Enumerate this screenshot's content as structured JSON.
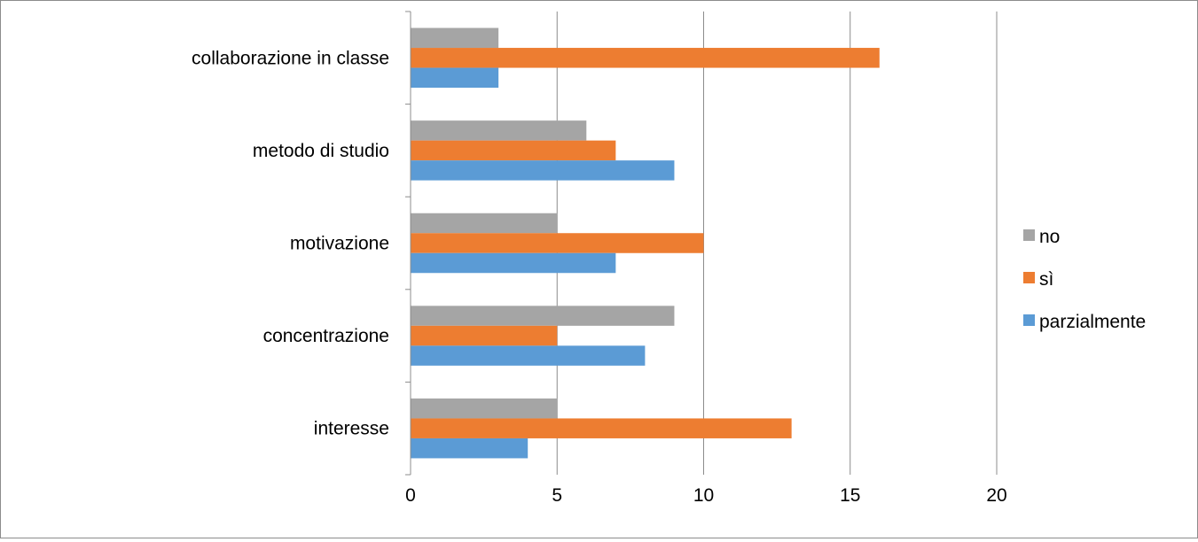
{
  "chart_data": {
    "type": "bar",
    "orientation": "horizontal",
    "categories": [
      "interesse",
      "concentrazione",
      "motivazione",
      "metodo di studio",
      "collaborazione in classe"
    ],
    "series": [
      {
        "name": "parzialmente",
        "color": "#5b9bd5",
        "values": [
          4,
          8,
          7,
          9,
          3
        ]
      },
      {
        "name": "sì",
        "color": "#ed7d31",
        "values": [
          13,
          5,
          10,
          7,
          16
        ]
      },
      {
        "name": "no",
        "color": "#a5a5a5",
        "values": [
          5,
          9,
          5,
          6,
          3
        ]
      }
    ],
    "title": "",
    "xlabel": "",
    "ylabel": "",
    "xlim": [
      0,
      20
    ],
    "xticks": [
      "0",
      "5",
      "10",
      "15",
      "20"
    ],
    "grid": "vertical",
    "legend": {
      "placement": "right",
      "order": [
        "no",
        "sì",
        "parzialmente"
      ]
    }
  }
}
